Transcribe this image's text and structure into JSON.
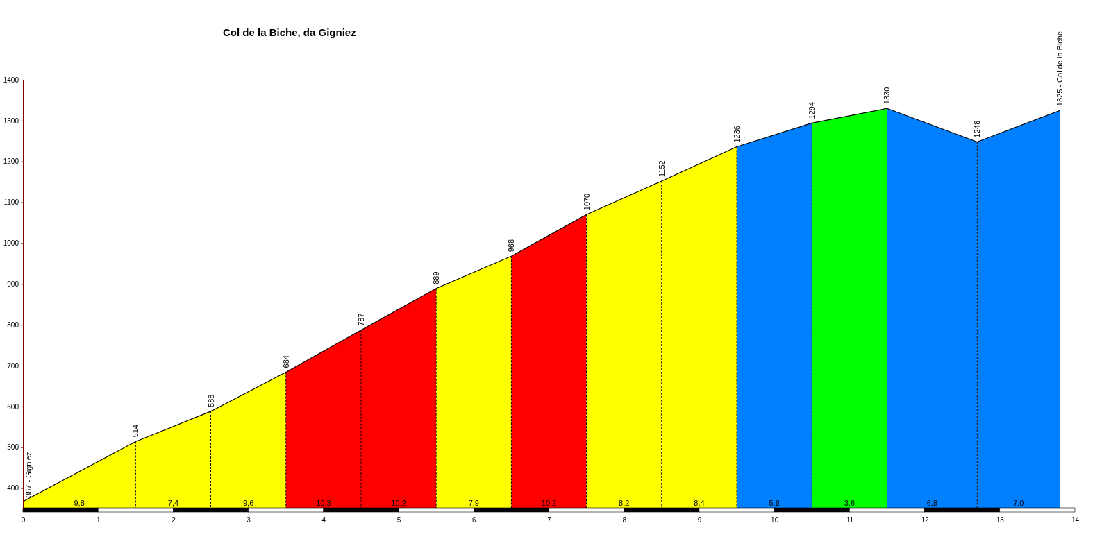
{
  "chart_data": {
    "type": "area",
    "title": "Col de la Biche, da Gigniez",
    "xlim": [
      0,
      14
    ],
    "xticks": [
      0,
      1,
      2,
      3,
      4,
      5,
      6,
      7,
      8,
      9,
      10,
      11,
      12,
      13,
      14
    ],
    "ylim": [
      350,
      1400
    ],
    "yticks": [
      400,
      500,
      600,
      700,
      800,
      900,
      1000,
      1100,
      1200,
      1300,
      1400
    ],
    "grid": false,
    "series": [
      {
        "color": "#ffff00",
        "x": [
          0,
          1.5
        ],
        "values": [
          367,
          514
        ]
      },
      {
        "color": "#ffff00",
        "x": [
          1.5,
          2.5
        ],
        "values": [
          514,
          588
        ]
      },
      {
        "color": "#ffff00",
        "x": [
          2.5,
          3.5
        ],
        "values": [
          588,
          684
        ]
      },
      {
        "color": "#ff0000",
        "x": [
          3.5,
          4.5
        ],
        "values": [
          684,
          787
        ]
      },
      {
        "color": "#ff0000",
        "x": [
          4.5,
          5.5
        ],
        "values": [
          787,
          889
        ]
      },
      {
        "color": "#ffff00",
        "x": [
          5.5,
          6.5
        ],
        "values": [
          889,
          968
        ]
      },
      {
        "color": "#ff0000",
        "x": [
          6.5,
          7.5
        ],
        "values": [
          968,
          1070
        ]
      },
      {
        "color": "#ffff00",
        "x": [
          7.5,
          8.5
        ],
        "values": [
          1070,
          1152
        ]
      },
      {
        "color": "#ffff00",
        "x": [
          8.5,
          9.5
        ],
        "values": [
          1152,
          1236
        ]
      },
      {
        "color": "#0080ff",
        "x": [
          9.5,
          10.5
        ],
        "values": [
          1236,
          1294
        ]
      },
      {
        "color": "#00ff00",
        "x": [
          10.5,
          11.5
        ],
        "values": [
          1294,
          1330
        ]
      },
      {
        "color": "#0080ff",
        "x": [
          11.5,
          12.7
        ],
        "values": [
          1330,
          1248
        ]
      },
      {
        "color": "#0080ff",
        "x": [
          12.7,
          13.8
        ],
        "values": [
          1248,
          1325
        ]
      },
      {
        "type": "line",
        "color": "#000000",
        "x": [
          0,
          1.5,
          2.5,
          3.5,
          4.5,
          5.5,
          6.5,
          7.5,
          8.5,
          9.5,
          10.5,
          11.5,
          12.7,
          13.8
        ],
        "values": [
          367,
          514,
          588,
          684,
          787,
          889,
          968,
          1070,
          1152,
          1236,
          1294,
          1330,
          1248,
          1325
        ],
        "value_labels": [
          "367 - Gigniez",
          "514",
          "588",
          "684",
          "787",
          "889",
          "968",
          "1070",
          "1152",
          "1236",
          "1294",
          "1330",
          "1248",
          "1325 - Col de la Biche"
        ]
      }
    ],
    "annotations": [
      "9,8",
      "7,4",
      "9,6",
      "10,3",
      "10,2",
      "7,9",
      "10,2",
      "8,2",
      "8,4",
      "5,8",
      "3,6",
      "6,8",
      "7,0"
    ]
  }
}
